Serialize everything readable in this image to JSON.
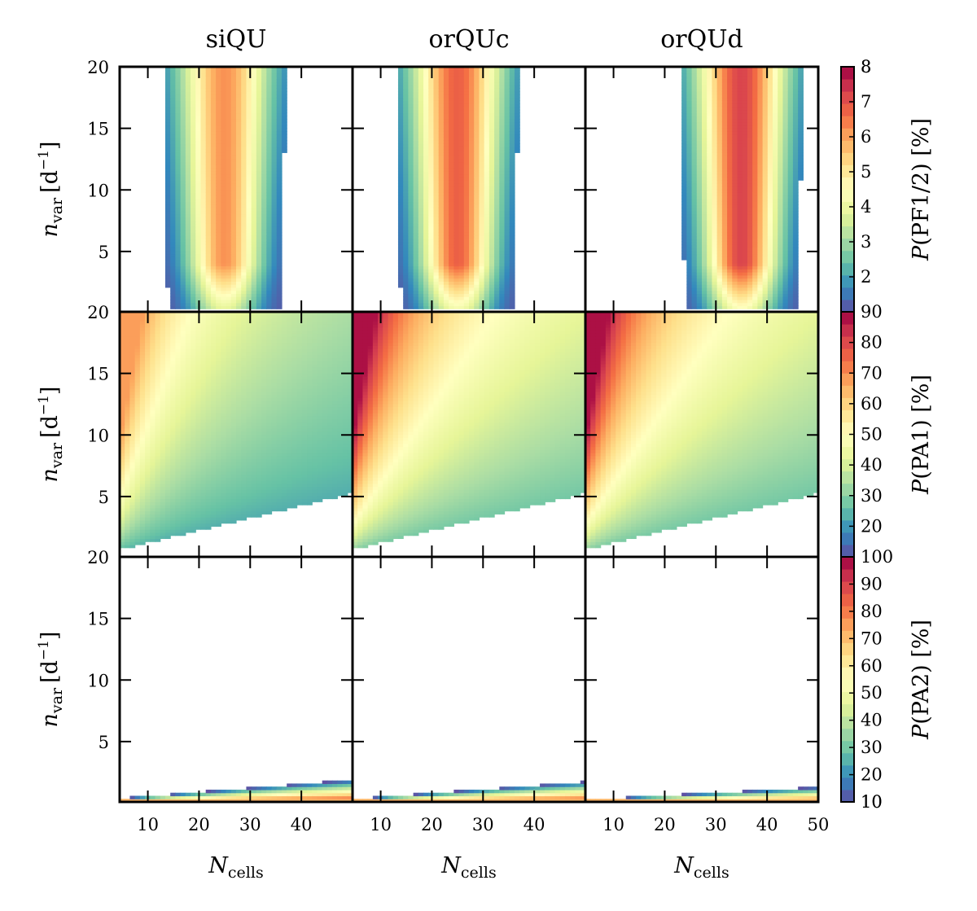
{
  "chart_data": {
    "type": "heatmap",
    "columns": [
      "siQU",
      "orQUc",
      "orQUd"
    ],
    "xlabel": {
      "main": "N",
      "sub": "cells"
    },
    "ylabel": {
      "main": "n",
      "sub": "var",
      "unit_open": "[d",
      "unit_exp": "−1",
      "unit_close": "]"
    },
    "xlim": [
      4.5,
      50
    ],
    "ylim": [
      0.1,
      20
    ],
    "x_ticks": [
      10,
      20,
      30,
      40
    ],
    "x_ticks_last": [
      10,
      20,
      30,
      40,
      50
    ],
    "y_ticks_top": [
      20,
      15,
      10,
      5
    ],
    "y_ticks_bottom": [
      15,
      10,
      5
    ],
    "grid": false,
    "colormap": [
      "#5e4fa2",
      "#3288bd",
      "#66c2a5",
      "#abdda4",
      "#e6f598",
      "#ffffbf",
      "#fee08b",
      "#fdae61",
      "#f46d43",
      "#d53e4f",
      "#9e0142"
    ],
    "rows": [
      {
        "id": "pf12",
        "colorbar_label": {
          "func": "P",
          "arg": "(PF1/2) [%]"
        },
        "colorbar_ticks": [
          2,
          3,
          4,
          5,
          6,
          7,
          8
        ],
        "colorbar_min": 1,
        "colorbar_max": 8,
        "extra_tick_label": "90",
        "panels": [
          {
            "center_x": 25,
            "peak": 6.2
          },
          {
            "center_x": 25,
            "peak": 6.8
          },
          {
            "center_x": 35,
            "peak": 7.2
          }
        ]
      },
      {
        "id": "pa1",
        "colorbar_label": {
          "func": "P",
          "arg": "(PA1) [%]"
        },
        "colorbar_ticks": [
          20,
          30,
          40,
          50,
          60,
          70,
          80
        ],
        "colorbar_min": 10,
        "colorbar_max": 90,
        "extra_tick_label": "100",
        "panels": [
          {
            "max": 68
          },
          {
            "max": 88
          },
          {
            "max": 88
          }
        ]
      },
      {
        "id": "pa2",
        "colorbar_label": {
          "func": "P",
          "arg": "(PA2) [%]"
        },
        "colorbar_ticks": [
          10,
          20,
          30,
          40,
          50,
          60,
          70,
          80,
          90
        ],
        "colorbar_min": 10,
        "colorbar_max": 100,
        "extra_tick_label": "",
        "panels": [
          {
            "edge_left": 0.4,
            "edge_right": 1.9
          },
          {
            "edge_left": 0.35,
            "edge_right": 1.75
          },
          {
            "edge_left": 0.3,
            "edge_right": 1.3
          }
        ]
      }
    ]
  }
}
